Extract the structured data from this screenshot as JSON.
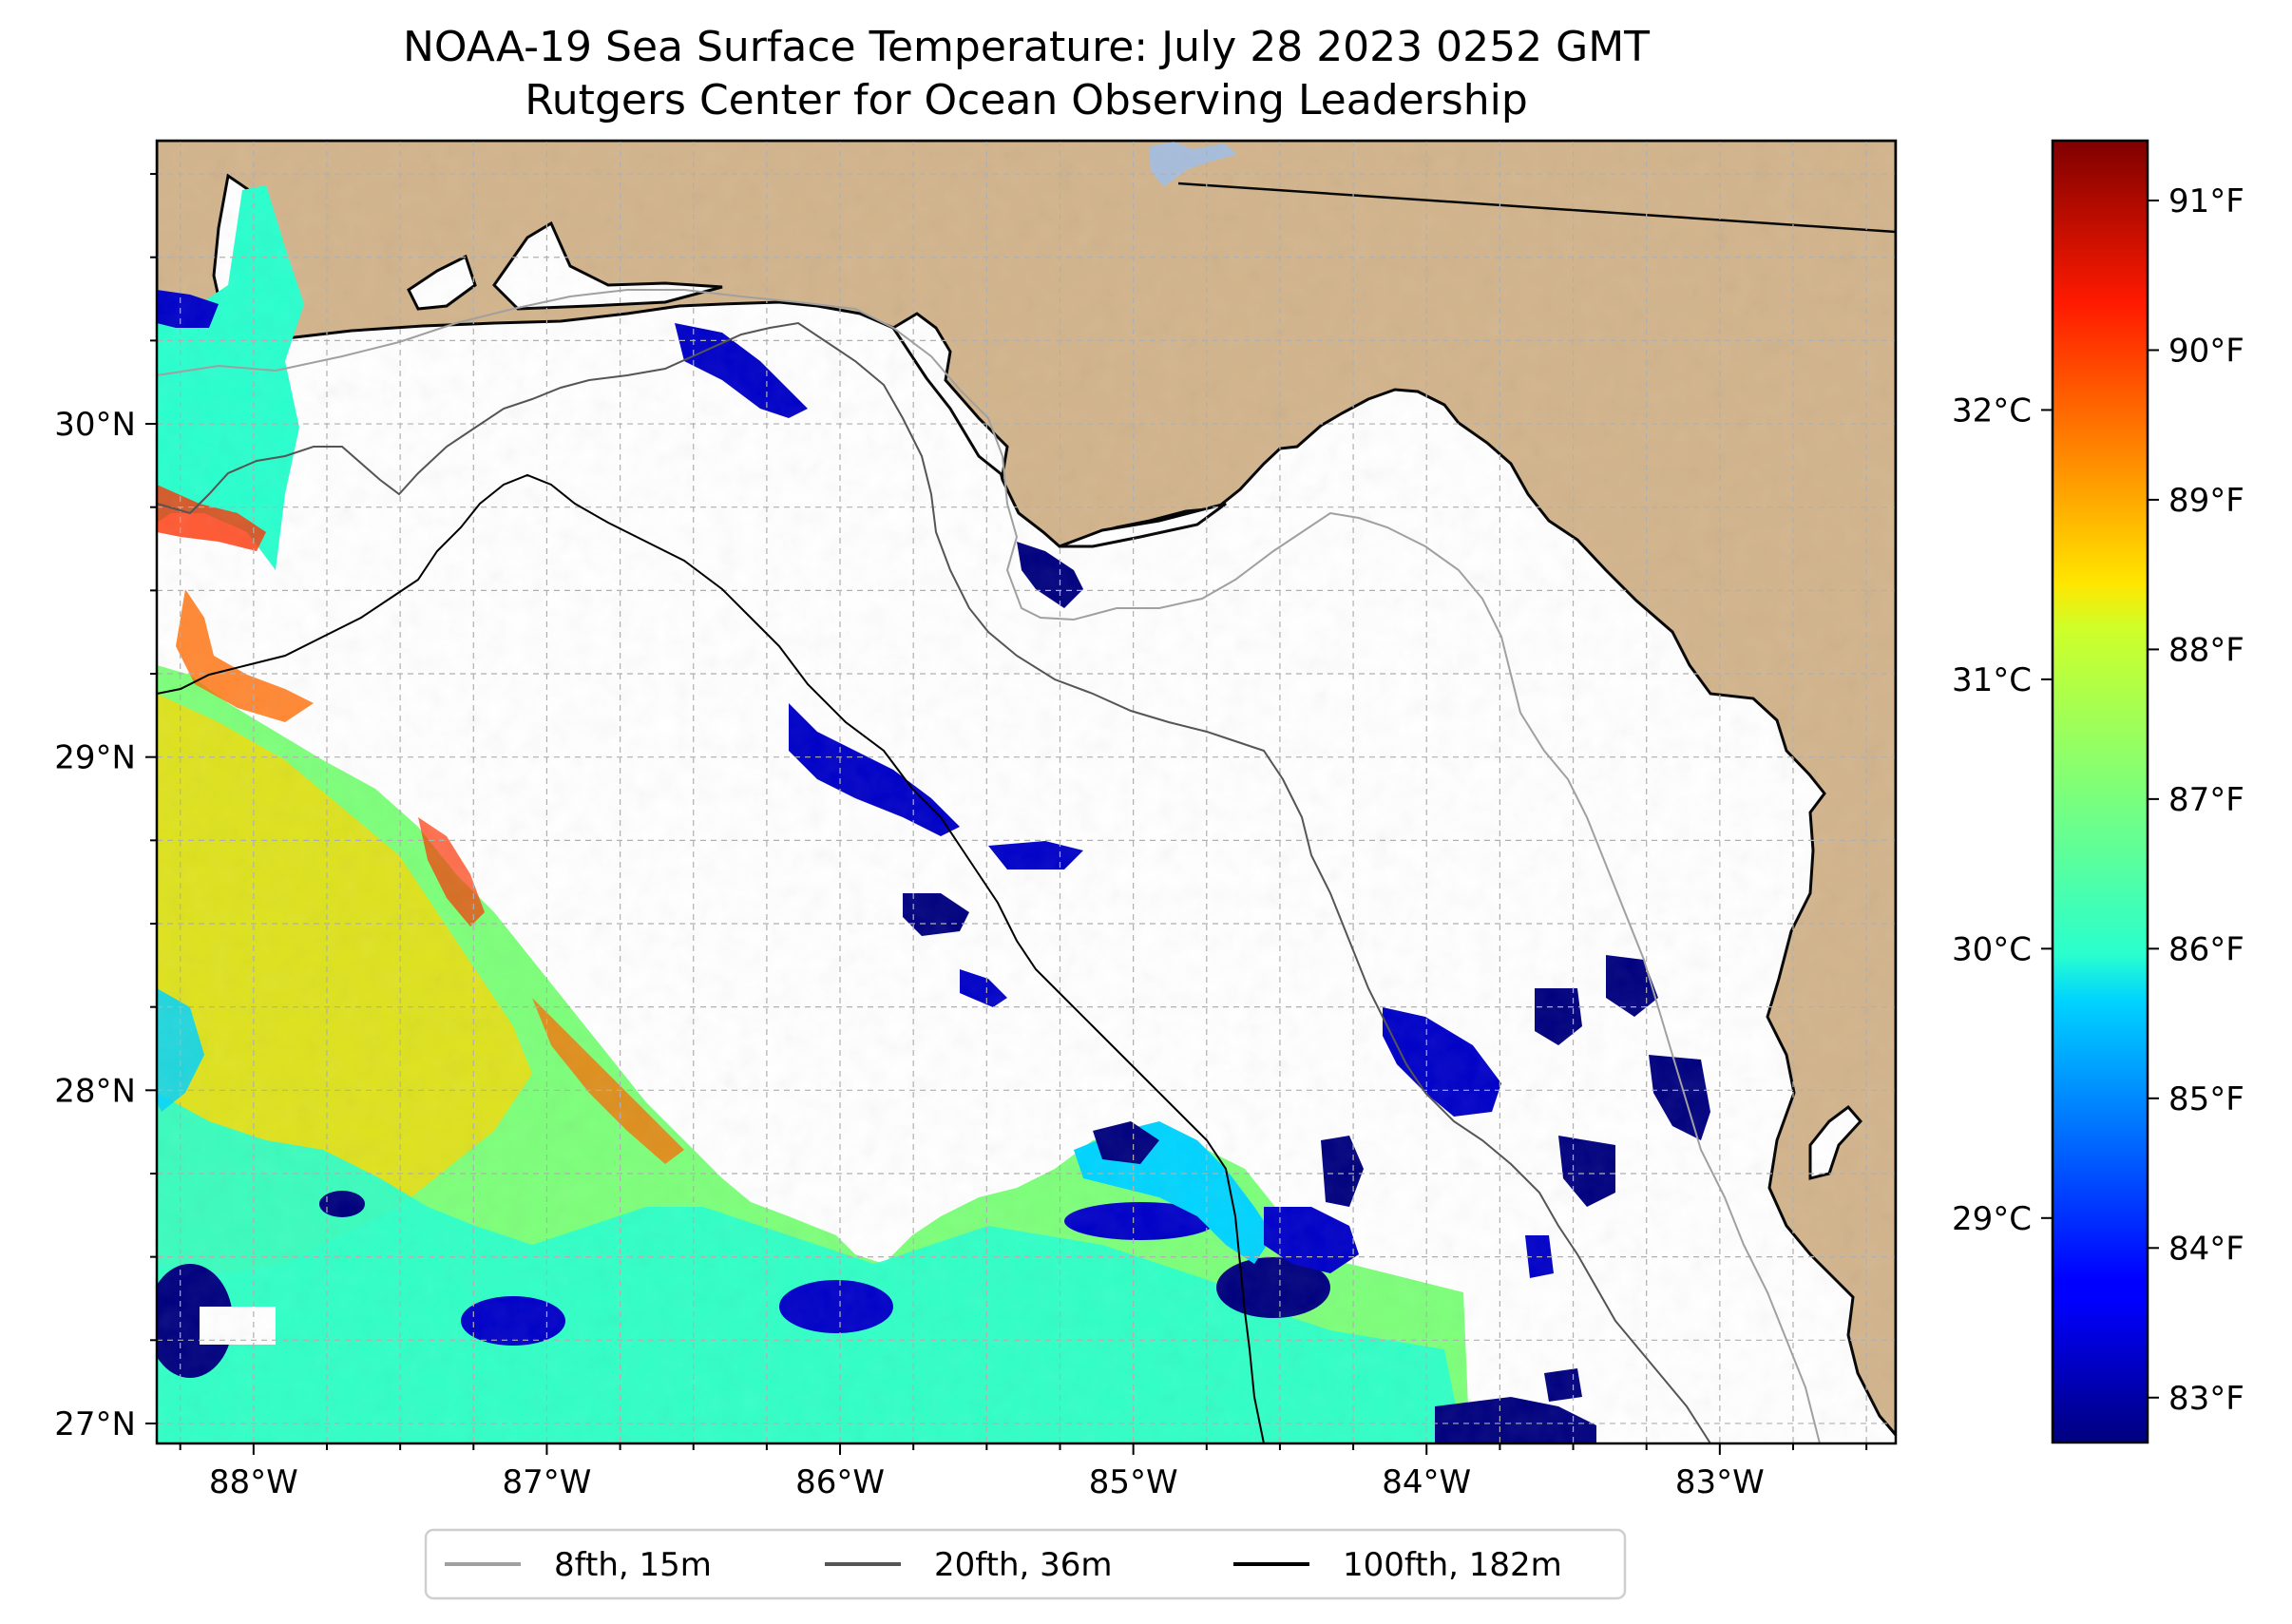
{
  "title": {
    "line1": "NOAA-19 Sea Surface Temperature: July 28 2023 0252 GMT",
    "line2": "Rutgers Center for Ocean Observing Leadership"
  },
  "colors": {
    "land": "#d2b48c",
    "ocean": "#ffffff",
    "coast": "#000000",
    "grid": "#b0b0b0",
    "lake": "#a6bddb",
    "isobath_8": "#a0a0a0",
    "isobath_20": "#555555",
    "isobath_100": "#000000"
  },
  "map": {
    "lon_range": [
      -88.33,
      -82.4
    ],
    "lat_range": [
      26.94,
      30.85
    ],
    "lon_ticks": [
      {
        "value": -88,
        "label": "88°W"
      },
      {
        "value": -87,
        "label": "87°W"
      },
      {
        "value": -86,
        "label": "86°W"
      },
      {
        "value": -85,
        "label": "85°W"
      },
      {
        "value": -84,
        "label": "84°W"
      },
      {
        "value": -83,
        "label": "83°W"
      }
    ],
    "lat_ticks": [
      {
        "value": 27,
        "label": "27°N"
      },
      {
        "value": 28,
        "label": "28°N"
      },
      {
        "value": 29,
        "label": "29°N"
      },
      {
        "value": 30,
        "label": "30°N"
      }
    ]
  },
  "colorbar": {
    "colormap": "jet",
    "f_range": [
      82.7,
      91.4
    ],
    "f_ticks": [
      {
        "value": 83,
        "label": "83°F"
      },
      {
        "value": 84,
        "label": "84°F"
      },
      {
        "value": 85,
        "label": "85°F"
      },
      {
        "value": 86,
        "label": "86°F"
      },
      {
        "value": 87,
        "label": "87°F"
      },
      {
        "value": 88,
        "label": "88°F"
      },
      {
        "value": 89,
        "label": "89°F"
      },
      {
        "value": 90,
        "label": "90°F"
      },
      {
        "value": 91,
        "label": "91°F"
      }
    ],
    "c_ticks": [
      {
        "value": 29,
        "label": "29°C"
      },
      {
        "value": 30,
        "label": "30°C"
      },
      {
        "value": 31,
        "label": "31°C"
      },
      {
        "value": 32,
        "label": "32°C"
      }
    ]
  },
  "legend": {
    "items": [
      {
        "label": "8fth, 15m",
        "color": "#a0a0a0"
      },
      {
        "label": "20fth, 36m",
        "color": "#555555"
      },
      {
        "label": "100fth, 182m",
        "color": "#000000"
      }
    ]
  }
}
